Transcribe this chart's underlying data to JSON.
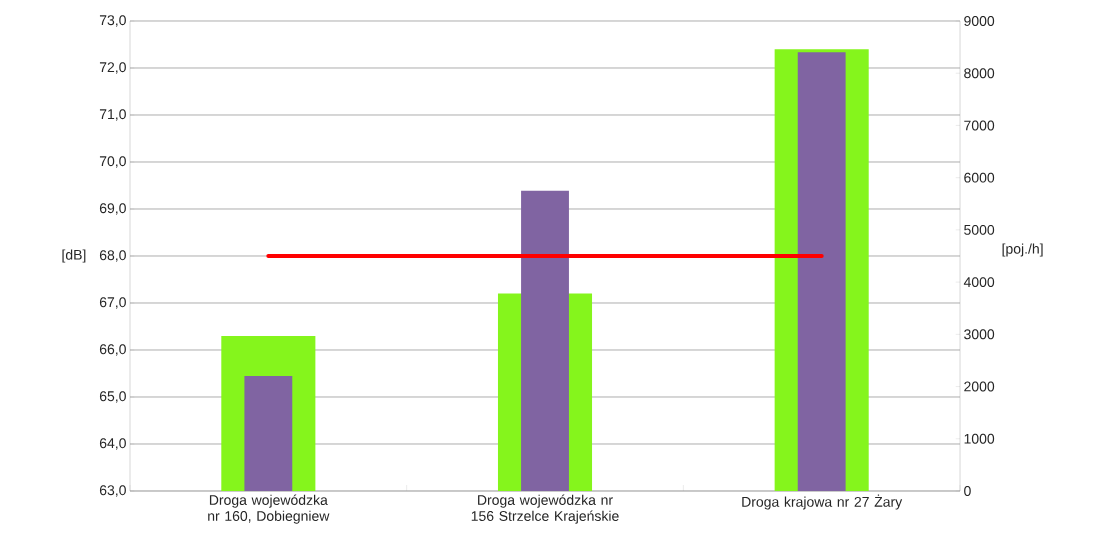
{
  "chart_data": {
    "type": "bar",
    "categories": [
      "Droga wojewódzka nr 160, Dobiegniew",
      "Droga wojewódzka nr 156 Strzelce Krajeńskie",
      "Droga krajowa nr 27  Żary"
    ],
    "ylabel": "[dB]",
    "y2label": "[poj./h]",
    "ylim": [
      63,
      73
    ],
    "yticks": [
      {
        "value": 63,
        "label": "63,0"
      },
      {
        "value": 64,
        "label": "64,0"
      },
      {
        "value": 65,
        "label": "65,0"
      },
      {
        "value": 66,
        "label": "66,0"
      },
      {
        "value": 67,
        "label": "67,0"
      },
      {
        "value": 68,
        "label": "68,0"
      },
      {
        "value": 69,
        "label": "69,0"
      },
      {
        "value": 70,
        "label": "70,0"
      },
      {
        "value": 71,
        "label": "71,0"
      },
      {
        "value": 72,
        "label": "72,0"
      },
      {
        "value": 73,
        "label": "73,0"
      }
    ],
    "y2lim": [
      0,
      9000
    ],
    "y2ticks": [
      0,
      1000,
      2000,
      3000,
      4000,
      5000,
      6000,
      7000,
      8000,
      9000
    ],
    "grid": "y",
    "series": [
      {
        "color": "#85f51c",
        "values": [
          66.3,
          67.2,
          72.4
        ]
      },
      {
        "color": "#8064a2",
        "values": [
          2200,
          5750,
          8400
        ],
        "axis": "y2"
      },
      {
        "type": "line",
        "color": "#ff0000",
        "values": [
          68,
          68,
          68
        ]
      }
    ]
  }
}
